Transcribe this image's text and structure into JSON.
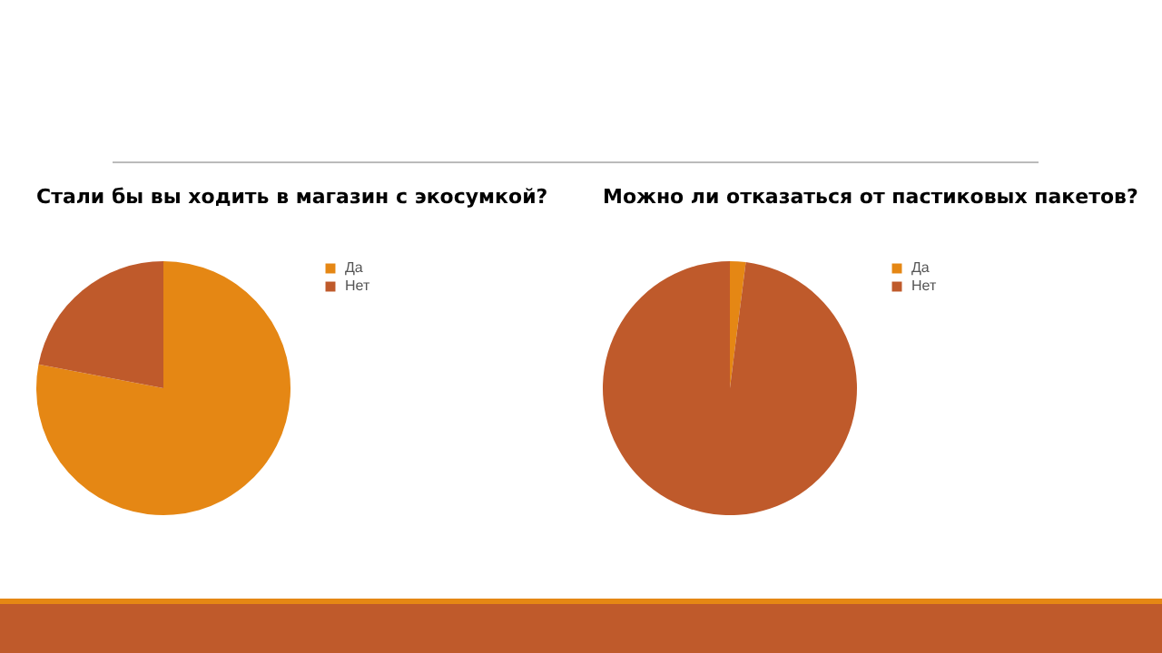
{
  "chart_data": [
    {
      "type": "pie",
      "title": "Стали бы вы ходить в магазин с экосумкой?",
      "categories": [
        "Да",
        "Нет"
      ],
      "values": [
        78,
        22
      ],
      "colors": [
        "#e58714",
        "#bf5a2b"
      ],
      "legend": "right"
    },
    {
      "type": "pie",
      "title": "Можно ли отказаться от пастиковых пакетов?",
      "categories": [
        "Да",
        "Нет"
      ],
      "values": [
        2,
        98
      ],
      "colors": [
        "#e58714",
        "#bf5a2b"
      ],
      "legend": "right"
    }
  ]
}
